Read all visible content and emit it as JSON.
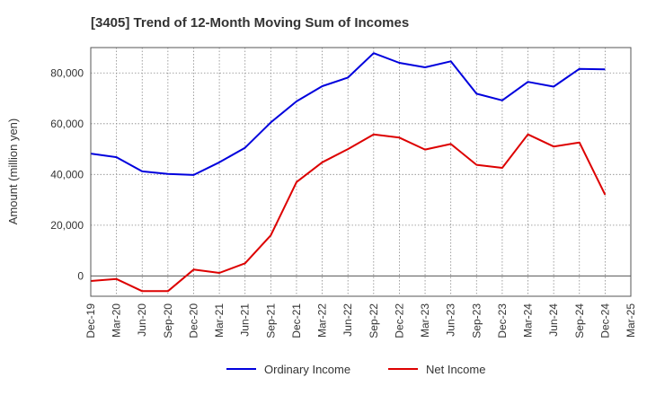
{
  "chart_data": {
    "type": "line",
    "title": "[3405]  Trend of 12-Month Moving Sum of Incomes",
    "xlabel": "",
    "ylabel": "Amount (million yen)",
    "ylim": [
      -8000,
      90000
    ],
    "yticks": [
      0,
      20000,
      40000,
      60000,
      80000
    ],
    "ytick_labels": [
      "0",
      "20,000",
      "40,000",
      "60,000",
      "80,000"
    ],
    "categories": [
      "Dec-19",
      "Mar-20",
      "Jun-20",
      "Sep-20",
      "Dec-20",
      "Mar-21",
      "Jun-21",
      "Sep-21",
      "Dec-21",
      "Mar-22",
      "Jun-22",
      "Sep-22",
      "Dec-22",
      "Mar-23",
      "Jun-23",
      "Sep-23",
      "Dec-23",
      "Mar-24",
      "Jun-24",
      "Sep-24",
      "Dec-24",
      "Mar-25"
    ],
    "grid": true,
    "legend_position": "bottom-center",
    "series": [
      {
        "name": "Ordinary Income",
        "color": "#0000dd",
        "values": [
          48200,
          46800,
          41200,
          40200,
          39800,
          44800,
          50500,
          60500,
          68800,
          74800,
          78200,
          87800,
          84000,
          82200,
          84600,
          71800,
          69200,
          76500,
          74600,
          81600,
          81400,
          null
        ]
      },
      {
        "name": "Net Income",
        "color": "#dd0000",
        "values": [
          -2000,
          -1200,
          -6000,
          -6000,
          2500,
          1200,
          5000,
          16000,
          37000,
          44800,
          50000,
          55800,
          54500,
          49800,
          52000,
          43800,
          42600,
          55800,
          51000,
          52600,
          32000,
          null
        ]
      }
    ]
  }
}
